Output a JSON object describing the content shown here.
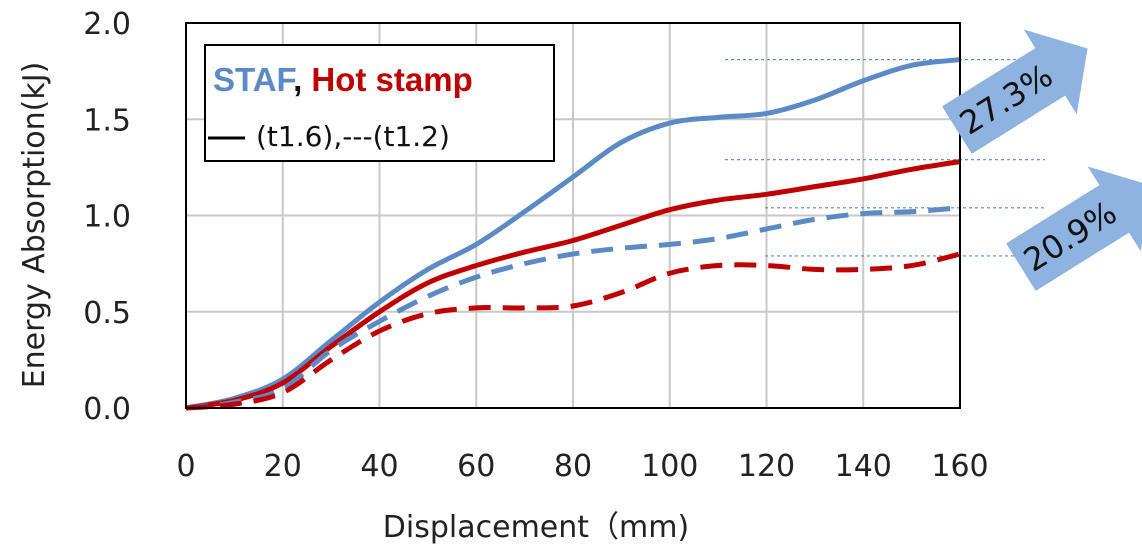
{
  "chart_data": {
    "type": "line",
    "xlabel": "Displacement（mm)",
    "ylabel": "Energy Absorption(kJ)",
    "xlim": [
      0,
      160
    ],
    "ylim": [
      0,
      2.0
    ],
    "x_ticks": [
      "0",
      "20",
      "40",
      "60",
      "80",
      "100",
      "120",
      "140",
      "160"
    ],
    "y_ticks": [
      "0.0",
      "0.5",
      "1.0",
      "1.5",
      "2.0"
    ],
    "grid": true,
    "legend": {
      "position": "top-left",
      "line1_a": "STAF",
      "line1_sep": ", ",
      "line1_b": "Hot stamp",
      "line2": "(t1.6),---(t1.2)"
    },
    "colors": {
      "staf": "#5b8ac6",
      "hot_stamp": "#c00000",
      "arrow": "#8eb3e0"
    },
    "series": [
      {
        "color": "#5b8ac6",
        "dash": false,
        "x": [
          0,
          10,
          20,
          30,
          40,
          50,
          60,
          70,
          80,
          90,
          100,
          110,
          120,
          130,
          140,
          150,
          160
        ],
        "y": [
          0,
          0.05,
          0.15,
          0.35,
          0.55,
          0.72,
          0.85,
          1.02,
          1.2,
          1.38,
          1.48,
          1.51,
          1.53,
          1.6,
          1.7,
          1.78,
          1.81
        ]
      },
      {
        "color": "#c00000",
        "dash": false,
        "x": [
          0,
          10,
          20,
          30,
          40,
          50,
          60,
          70,
          80,
          90,
          100,
          110,
          120,
          130,
          140,
          150,
          160
        ],
        "y": [
          0,
          0.04,
          0.13,
          0.32,
          0.5,
          0.65,
          0.74,
          0.81,
          0.87,
          0.95,
          1.03,
          1.08,
          1.11,
          1.15,
          1.19,
          1.24,
          1.28
        ]
      },
      {
        "color": "#5b8ac6",
        "dash": true,
        "x": [
          0,
          10,
          20,
          30,
          40,
          50,
          60,
          70,
          80,
          90,
          100,
          110,
          120,
          130,
          140,
          150,
          160
        ],
        "y": [
          0,
          0.03,
          0.1,
          0.3,
          0.45,
          0.58,
          0.68,
          0.75,
          0.8,
          0.83,
          0.85,
          0.88,
          0.93,
          0.98,
          1.01,
          1.02,
          1.04
        ]
      },
      {
        "color": "#c00000",
        "dash": true,
        "x": [
          0,
          10,
          20,
          30,
          40,
          50,
          60,
          70,
          80,
          90,
          100,
          110,
          120,
          130,
          140,
          150,
          160
        ],
        "y": [
          0,
          0.02,
          0.08,
          0.25,
          0.4,
          0.49,
          0.52,
          0.52,
          0.53,
          0.6,
          0.7,
          0.74,
          0.74,
          0.72,
          0.72,
          0.74,
          0.8
        ]
      }
    ],
    "annotations": [
      {
        "text": "27.3%",
        "y_top": 1.81,
        "y_bottom": 1.29
      },
      {
        "text": "20.9%",
        "y_top": 1.04,
        "y_bottom": 0.79
      }
    ]
  }
}
